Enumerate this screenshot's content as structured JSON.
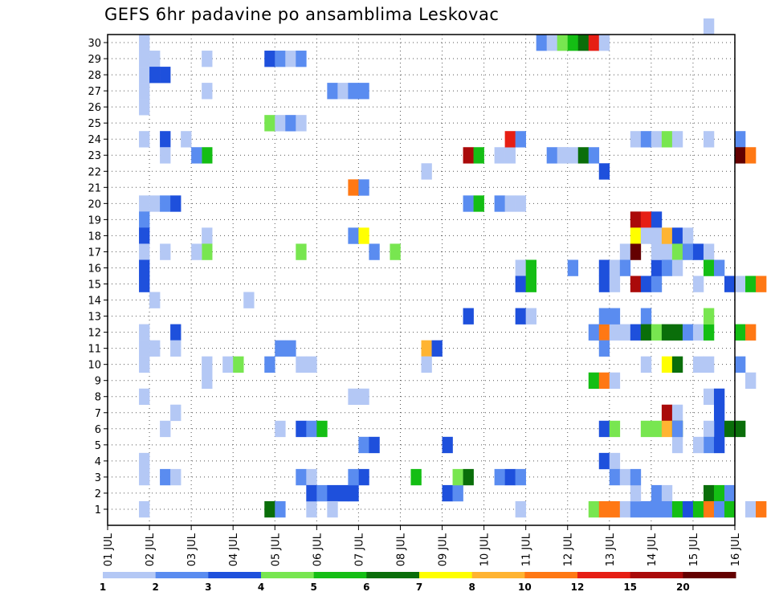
{
  "chart_data": {
    "type": "heatmap",
    "title": "GEFS 6hr padavine po ansamblima Leskovac",
    "xlabel": "",
    "ylabel": "",
    "x_tick_labels": [
      "01 JUL",
      "02 JUL",
      "03 JUL",
      "04 JUL",
      "05 JUL",
      "06 JUL",
      "07 JUL",
      "08 JUL",
      "09 JUL",
      "10 JUL",
      "11 JUL",
      "12 JUL",
      "13 JUL",
      "14 JUL",
      "15 JUL",
      "16 JUL"
    ],
    "y_tick_labels": [
      "1",
      "2",
      "3",
      "4",
      "5",
      "6",
      "7",
      "8",
      "9",
      "10",
      "11",
      "12",
      "13",
      "14",
      "15",
      "16",
      "17",
      "18",
      "19",
      "20",
      "21",
      "22",
      "23",
      "24",
      "25",
      "26",
      "27",
      "28",
      "29",
      "30"
    ],
    "x_steps": 60,
    "members": 30,
    "grid": true,
    "legend": {
      "position": "bottom",
      "labels": [
        "1",
        "2",
        "3",
        "4",
        "5",
        "6",
        "7",
        "8",
        "10",
        "12",
        "15",
        "20"
      ],
      "colors": [
        "#b4c8f5",
        "#5a8cf0",
        "#1e50dc",
        "#78e650",
        "#14be14",
        "#0a6e0a",
        "#ffff00",
        "#ffb432",
        "#ff7814",
        "#e61e14",
        "#aa0a0a",
        "#640000"
      ]
    },
    "levels": [
      "1",
      "2",
      "3",
      "4",
      "5",
      "6",
      "7",
      "8",
      "10",
      "12",
      "15",
      "20"
    ],
    "cells": [
      [
        4,
        30,
        0
      ],
      [
        4,
        29,
        0
      ],
      [
        5,
        29,
        0
      ],
      [
        4,
        28,
        0
      ],
      [
        5,
        28,
        2
      ],
      [
        6,
        28,
        2
      ],
      [
        4,
        27,
        0
      ],
      [
        4,
        26,
        0
      ],
      [
        4,
        24,
        0
      ],
      [
        4,
        20,
        0
      ],
      [
        5,
        20,
        0
      ],
      [
        4,
        19,
        1
      ],
      [
        4,
        18,
        2
      ],
      [
        4,
        17,
        0
      ],
      [
        4,
        16,
        2
      ],
      [
        4,
        15,
        2
      ],
      [
        4,
        12,
        0
      ],
      [
        4,
        11,
        0
      ],
      [
        5,
        11,
        0
      ],
      [
        4,
        10,
        0
      ],
      [
        4,
        8,
        0
      ],
      [
        4,
        4,
        0
      ],
      [
        4,
        3,
        0
      ],
      [
        4,
        1,
        0
      ],
      [
        5,
        14,
        0
      ],
      [
        6,
        24,
        2
      ],
      [
        6,
        23,
        0
      ],
      [
        6,
        20,
        1
      ],
      [
        7,
        20,
        2
      ],
      [
        6,
        17,
        0
      ],
      [
        7,
        12,
        2
      ],
      [
        7,
        11,
        0
      ],
      [
        6,
        6,
        0
      ],
      [
        7,
        7,
        0
      ],
      [
        6,
        3,
        1
      ],
      [
        7,
        3,
        0
      ],
      [
        8,
        24,
        0
      ],
      [
        10,
        29,
        0
      ],
      [
        10,
        27,
        0
      ],
      [
        10,
        18,
        0
      ],
      [
        10,
        17,
        3
      ],
      [
        9,
        17,
        0
      ],
      [
        10,
        23,
        4
      ],
      [
        9,
        23,
        1
      ],
      [
        10,
        10,
        0
      ],
      [
        10,
        9,
        0
      ],
      [
        12,
        10,
        0
      ],
      [
        13,
        10,
        3
      ],
      [
        14,
        14,
        0
      ],
      [
        16,
        25,
        3
      ],
      [
        17,
        25,
        0
      ],
      [
        18,
        25,
        1
      ],
      [
        19,
        25,
        0
      ],
      [
        16,
        29,
        2
      ],
      [
        17,
        29,
        1
      ],
      [
        18,
        29,
        0
      ],
      [
        19,
        29,
        1
      ],
      [
        17,
        11,
        1
      ],
      [
        18,
        11,
        1
      ],
      [
        16,
        10,
        1
      ],
      [
        19,
        10,
        0
      ],
      [
        20,
        10,
        0
      ],
      [
        17,
        6,
        0
      ],
      [
        19,
        6,
        2
      ],
      [
        20,
        6,
        1
      ],
      [
        21,
        6,
        4
      ],
      [
        16,
        1,
        5
      ],
      [
        17,
        1,
        1
      ],
      [
        20,
        1,
        0
      ],
      [
        19,
        3,
        1
      ],
      [
        20,
        3,
        0
      ],
      [
        20,
        2,
        2
      ],
      [
        19,
        17,
        3
      ],
      [
        22,
        27,
        1
      ],
      [
        23,
        27,
        0
      ],
      [
        24,
        27,
        1
      ],
      [
        25,
        27,
        1
      ],
      [
        24,
        21,
        8
      ],
      [
        25,
        21,
        1
      ],
      [
        24,
        18,
        1
      ],
      [
        25,
        18,
        6
      ],
      [
        26,
        17,
        1
      ],
      [
        24,
        8,
        0
      ],
      [
        25,
        8,
        0
      ],
      [
        21,
        2,
        1
      ],
      [
        22,
        2,
        2
      ],
      [
        23,
        2,
        2
      ],
      [
        24,
        2,
        2
      ],
      [
        25,
        3,
        2
      ],
      [
        24,
        3,
        1
      ],
      [
        25,
        5,
        1
      ],
      [
        26,
        5,
        2
      ],
      [
        22,
        1,
        0
      ],
      [
        28,
        17,
        3
      ],
      [
        31,
        22,
        0
      ],
      [
        31,
        11,
        7
      ],
      [
        32,
        11,
        2
      ],
      [
        31,
        10,
        0
      ],
      [
        30,
        3,
        4
      ],
      [
        33,
        5,
        2
      ],
      [
        33,
        2,
        2
      ],
      [
        34,
        2,
        1
      ],
      [
        34,
        3,
        3
      ],
      [
        35,
        3,
        5
      ],
      [
        35,
        23,
        10
      ],
      [
        36,
        23,
        4
      ],
      [
        35,
        20,
        1
      ],
      [
        36,
        20,
        4
      ],
      [
        35,
        13,
        2
      ],
      [
        38,
        20,
        1
      ],
      [
        39,
        20,
        0
      ],
      [
        40,
        20,
        0
      ],
      [
        38,
        23,
        0
      ],
      [
        39,
        23,
        0
      ],
      [
        38,
        3,
        1
      ],
      [
        39,
        3,
        2
      ],
      [
        40,
        3,
        1
      ],
      [
        39,
        24,
        9
      ],
      [
        40,
        24,
        1
      ],
      [
        40,
        16,
        0
      ],
      [
        40,
        15,
        2
      ],
      [
        40,
        13,
        2
      ],
      [
        41,
        13,
        0
      ],
      [
        41,
        16,
        4
      ],
      [
        41,
        15,
        4
      ],
      [
        40,
        1,
        0
      ],
      [
        42,
        30,
        1
      ],
      [
        43,
        30,
        0
      ],
      [
        44,
        30,
        3
      ],
      [
        45,
        30,
        4
      ],
      [
        46,
        30,
        5
      ],
      [
        47,
        30,
        9
      ],
      [
        48,
        30,
        0
      ],
      [
        44,
        23,
        0
      ],
      [
        45,
        23,
        0
      ],
      [
        45,
        16,
        1
      ],
      [
        43,
        23,
        1
      ],
      [
        44,
        23,
        0
      ],
      [
        46,
        23,
        5
      ],
      [
        47,
        23,
        1
      ],
      [
        48,
        22,
        2
      ],
      [
        48,
        16,
        2
      ],
      [
        48,
        15,
        2
      ],
      [
        49,
        16,
        0
      ],
      [
        49,
        15,
        0
      ],
      [
        47,
        12,
        1
      ],
      [
        48,
        12,
        8
      ],
      [
        49,
        12,
        0
      ],
      [
        50,
        12,
        0
      ],
      [
        48,
        13,
        1
      ],
      [
        49,
        13,
        1
      ],
      [
        48,
        11,
        1
      ],
      [
        47,
        9,
        4
      ],
      [
        48,
        9,
        8
      ],
      [
        49,
        9,
        0
      ],
      [
        48,
        6,
        2
      ],
      [
        49,
        6,
        3
      ],
      [
        48,
        4,
        2
      ],
      [
        49,
        4,
        0
      ],
      [
        49,
        3,
        1
      ],
      [
        50,
        3,
        0
      ],
      [
        47,
        1,
        3
      ],
      [
        48,
        1,
        8
      ],
      [
        49,
        1,
        8
      ],
      [
        50,
        1,
        0
      ],
      [
        51,
        1,
        1
      ],
      [
        52,
        1,
        1
      ],
      [
        51,
        2,
        0
      ],
      [
        51,
        3,
        1
      ],
      [
        50,
        17,
        0
      ],
      [
        50,
        16,
        1
      ],
      [
        51,
        19,
        10
      ],
      [
        51,
        18,
        6
      ],
      [
        51,
        17,
        11
      ],
      [
        52,
        19,
        9
      ],
      [
        52,
        18,
        0
      ],
      [
        53,
        19,
        2
      ],
      [
        53,
        18,
        0
      ],
      [
        51,
        15,
        10
      ],
      [
        52,
        15,
        2
      ],
      [
        53,
        15,
        1
      ],
      [
        52,
        13,
        1
      ],
      [
        51,
        12,
        2
      ],
      [
        52,
        12,
        5
      ],
      [
        53,
        12,
        3
      ],
      [
        54,
        12,
        5
      ],
      [
        55,
        12,
        5
      ],
      [
        52,
        10,
        0
      ],
      [
        54,
        10,
        6
      ],
      [
        55,
        10,
        5
      ],
      [
        53,
        16,
        2
      ],
      [
        53,
        17,
        0
      ],
      [
        54,
        17,
        0
      ],
      [
        54,
        16,
        1
      ],
      [
        54,
        18,
        7
      ],
      [
        55,
        18,
        2
      ],
      [
        55,
        17,
        3
      ],
      [
        55,
        16,
        0
      ],
      [
        56,
        18,
        0
      ],
      [
        56,
        17,
        1
      ],
      [
        56,
        12,
        1
      ],
      [
        54,
        7,
        10
      ],
      [
        55,
        7,
        0
      ],
      [
        52,
        6,
        3
      ],
      [
        53,
        6,
        3
      ],
      [
        54,
        6,
        7
      ],
      [
        55,
        6,
        5
      ],
      [
        55,
        5,
        0
      ],
      [
        55,
        6,
        1
      ],
      [
        53,
        2,
        1
      ],
      [
        54,
        2,
        0
      ],
      [
        53,
        1,
        1
      ],
      [
        54,
        1,
        1
      ],
      [
        55,
        1,
        4
      ],
      [
        56,
        1,
        2
      ],
      [
        57,
        1,
        1
      ],
      [
        51,
        24,
        0
      ],
      [
        52,
        24,
        1
      ],
      [
        53,
        24,
        0
      ],
      [
        54,
        24,
        3
      ],
      [
        55,
        24,
        0
      ],
      [
        58,
        31,
        0
      ],
      [
        57,
        17,
        2
      ],
      [
        58,
        17,
        0
      ],
      [
        58,
        16,
        4
      ],
      [
        59,
        16,
        1
      ],
      [
        57,
        15,
        0
      ],
      [
        57,
        12,
        0
      ],
      [
        58,
        12,
        4
      ],
      [
        58,
        13,
        3
      ],
      [
        57,
        10,
        0
      ],
      [
        58,
        10,
        0
      ],
      [
        58,
        8,
        0
      ],
      [
        59,
        8,
        2
      ],
      [
        59,
        7,
        2
      ],
      [
        59,
        6,
        2
      ],
      [
        58,
        6,
        0
      ],
      [
        58,
        5,
        1
      ],
      [
        57,
        5,
        0
      ],
      [
        59,
        5,
        2
      ],
      [
        58,
        2,
        5
      ],
      [
        59,
        2,
        4
      ],
      [
        60,
        2,
        1
      ],
      [
        57,
        1,
        4
      ],
      [
        58,
        1,
        8
      ],
      [
        59,
        1,
        1
      ],
      [
        60,
        1,
        4
      ],
      [
        58,
        24,
        0
      ],
      [
        61,
        24,
        1
      ],
      [
        61,
        23,
        11
      ],
      [
        62,
        23,
        8
      ],
      [
        60,
        15,
        2
      ],
      [
        61,
        15,
        0
      ],
      [
        62,
        15,
        4
      ],
      [
        63,
        15,
        8
      ],
      [
        61,
        12,
        4
      ],
      [
        62,
        12,
        8
      ],
      [
        61,
        10,
        1
      ],
      [
        61,
        6,
        5
      ],
      [
        60,
        6,
        5
      ],
      [
        62,
        9,
        0
      ],
      [
        62,
        1,
        0
      ],
      [
        63,
        1,
        8
      ]
    ]
  }
}
